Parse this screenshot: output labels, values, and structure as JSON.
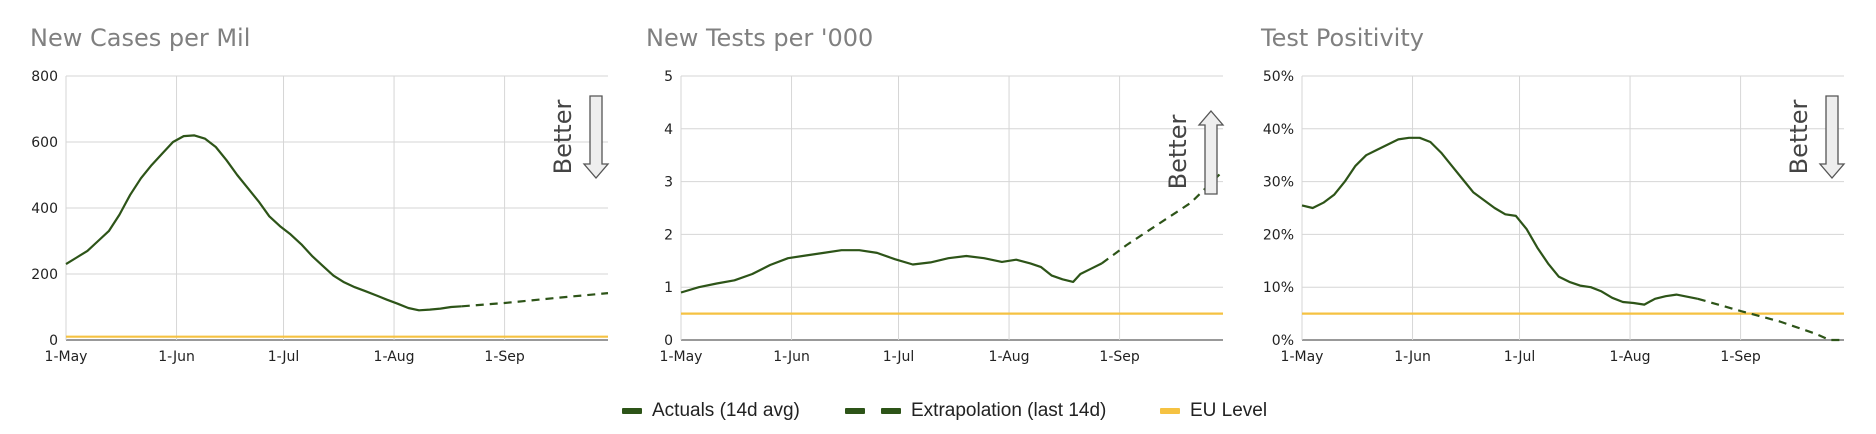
{
  "colors": {
    "actual": "#2d5418",
    "extrapolation": "#2d5418",
    "eu": "#f5c242",
    "grid": "#d6d6d6",
    "axis": "#333333",
    "title": "#808080"
  },
  "legend": {
    "items": [
      {
        "label": "Actuals (14d avg)",
        "style": "solid"
      },
      {
        "label": "Extrapolation (last 14d)",
        "style": "dashed"
      },
      {
        "label": "EU Level",
        "style": "eu"
      }
    ]
  },
  "chart_data": [
    {
      "type": "line",
      "title": "New Cases per Mil",
      "xlabel": "",
      "ylabel": "",
      "x_ticks": [
        "1-May",
        "1-Jun",
        "1-Jul",
        "1-Aug",
        "1-Sep"
      ],
      "xlim": [
        "2020-05-01",
        "2020-09-30"
      ],
      "ylim": [
        0,
        800
      ],
      "y_ticks": [
        0,
        200,
        400,
        600,
        800
      ],
      "y_tick_labels": [
        "0",
        "200",
        "400",
        "600",
        "800"
      ],
      "grid": true,
      "better": {
        "label": "Better",
        "direction": "down"
      },
      "eu_level": 10,
      "series": [
        {
          "style": "solid",
          "points": [
            [
              "2020-05-01",
              230
            ],
            [
              "2020-05-04",
              250
            ],
            [
              "2020-05-07",
              270
            ],
            [
              "2020-05-10",
              300
            ],
            [
              "2020-05-13",
              330
            ],
            [
              "2020-05-16",
              380
            ],
            [
              "2020-05-19",
              440
            ],
            [
              "2020-05-22",
              490
            ],
            [
              "2020-05-25",
              530
            ],
            [
              "2020-05-28",
              565
            ],
            [
              "2020-05-31",
              600
            ],
            [
              "2020-06-03",
              618
            ],
            [
              "2020-06-06",
              620
            ],
            [
              "2020-06-09",
              610
            ],
            [
              "2020-06-12",
              585
            ],
            [
              "2020-06-15",
              545
            ],
            [
              "2020-06-18",
              500
            ],
            [
              "2020-06-21",
              460
            ],
            [
              "2020-06-24",
              420
            ],
            [
              "2020-06-27",
              375
            ],
            [
              "2020-06-30",
              345
            ],
            [
              "2020-07-03",
              320
            ],
            [
              "2020-07-06",
              290
            ],
            [
              "2020-07-09",
              255
            ],
            [
              "2020-07-12",
              225
            ],
            [
              "2020-07-15",
              195
            ],
            [
              "2020-07-18",
              175
            ],
            [
              "2020-07-21",
              160
            ],
            [
              "2020-07-24",
              148
            ],
            [
              "2020-07-27",
              135
            ],
            [
              "2020-07-30",
              122
            ],
            [
              "2020-08-02",
              110
            ],
            [
              "2020-08-05",
              97
            ],
            [
              "2020-08-08",
              90
            ],
            [
              "2020-08-11",
              92
            ],
            [
              "2020-08-14",
              95
            ],
            [
              "2020-08-17",
              100
            ],
            [
              "2020-08-20",
              102
            ]
          ]
        },
        {
          "style": "dashed",
          "points": [
            [
              "2020-08-20",
              102
            ],
            [
              "2020-09-01",
              112
            ],
            [
              "2020-09-15",
              127
            ],
            [
              "2020-09-30",
              142
            ]
          ]
        }
      ]
    },
    {
      "type": "line",
      "title": "New Tests per '000",
      "xlabel": "",
      "ylabel": "",
      "x_ticks": [
        "1-May",
        "1-Jun",
        "1-Jul",
        "1-Aug",
        "1-Sep"
      ],
      "xlim": [
        "2020-05-01",
        "2020-09-30"
      ],
      "ylim": [
        0,
        5
      ],
      "y_ticks": [
        0,
        1,
        2,
        3,
        4,
        5
      ],
      "y_tick_labels": [
        "0",
        "1",
        "2",
        "3",
        "4",
        "5"
      ],
      "grid": true,
      "better": {
        "label": "Better",
        "direction": "up"
      },
      "eu_level": 0.5,
      "series": [
        {
          "style": "solid",
          "points": [
            [
              "2020-05-01",
              0.9
            ],
            [
              "2020-05-06",
              1.0
            ],
            [
              "2020-05-11",
              1.07
            ],
            [
              "2020-05-16",
              1.13
            ],
            [
              "2020-05-21",
              1.25
            ],
            [
              "2020-05-26",
              1.42
            ],
            [
              "2020-05-31",
              1.55
            ],
            [
              "2020-06-05",
              1.6
            ],
            [
              "2020-06-10",
              1.65
            ],
            [
              "2020-06-15",
              1.7
            ],
            [
              "2020-06-20",
              1.7
            ],
            [
              "2020-06-25",
              1.65
            ],
            [
              "2020-06-30",
              1.53
            ],
            [
              "2020-07-05",
              1.43
            ],
            [
              "2020-07-10",
              1.47
            ],
            [
              "2020-07-15",
              1.55
            ],
            [
              "2020-07-20",
              1.59
            ],
            [
              "2020-07-25",
              1.55
            ],
            [
              "2020-07-30",
              1.48
            ],
            [
              "2020-08-03",
              1.52
            ],
            [
              "2020-08-07",
              1.45
            ],
            [
              "2020-08-10",
              1.38
            ],
            [
              "2020-08-13",
              1.22
            ],
            [
              "2020-08-16",
              1.15
            ],
            [
              "2020-08-19",
              1.1
            ],
            [
              "2020-08-21",
              1.25
            ],
            [
              "2020-08-24",
              1.35
            ],
            [
              "2020-08-27",
              1.45
            ]
          ]
        },
        {
          "style": "dashed",
          "points": [
            [
              "2020-08-27",
              1.45
            ],
            [
              "2020-09-03",
              1.8
            ],
            [
              "2020-09-12",
              2.2
            ],
            [
              "2020-09-21",
              2.6
            ],
            [
              "2020-09-30",
              3.2
            ]
          ]
        }
      ]
    },
    {
      "type": "line",
      "title": "Test Positivity",
      "xlabel": "",
      "ylabel": "",
      "x_ticks": [
        "1-May",
        "1-Jun",
        "1-Jul",
        "1-Aug",
        "1-Sep"
      ],
      "xlim": [
        "2020-05-01",
        "2020-09-30"
      ],
      "ylim": [
        0,
        50
      ],
      "y_ticks": [
        0,
        10,
        20,
        30,
        40,
        50
      ],
      "y_tick_labels": [
        "0%",
        "10%",
        "20%",
        "30%",
        "40%",
        "50%"
      ],
      "grid": true,
      "better": {
        "label": "Better",
        "direction": "down"
      },
      "eu_level": 5,
      "series": [
        {
          "style": "solid",
          "points": [
            [
              "2020-05-01",
              25.5
            ],
            [
              "2020-05-04",
              25.0
            ],
            [
              "2020-05-07",
              26.0
            ],
            [
              "2020-05-10",
              27.5
            ],
            [
              "2020-05-13",
              30.0
            ],
            [
              "2020-05-16",
              33.0
            ],
            [
              "2020-05-19",
              35.0
            ],
            [
              "2020-05-22",
              36.0
            ],
            [
              "2020-05-25",
              37.0
            ],
            [
              "2020-05-28",
              38.0
            ],
            [
              "2020-05-31",
              38.3
            ],
            [
              "2020-06-03",
              38.3
            ],
            [
              "2020-06-06",
              37.5
            ],
            [
              "2020-06-09",
              35.5
            ],
            [
              "2020-06-12",
              33.0
            ],
            [
              "2020-06-15",
              30.5
            ],
            [
              "2020-06-18",
              28.0
            ],
            [
              "2020-06-21",
              26.5
            ],
            [
              "2020-06-24",
              25.0
            ],
            [
              "2020-06-27",
              23.8
            ],
            [
              "2020-06-30",
              23.5
            ],
            [
              "2020-07-03",
              21.0
            ],
            [
              "2020-07-06",
              17.5
            ],
            [
              "2020-07-09",
              14.5
            ],
            [
              "2020-07-12",
              12.0
            ],
            [
              "2020-07-15",
              11.0
            ],
            [
              "2020-07-18",
              10.3
            ],
            [
              "2020-07-21",
              10.0
            ],
            [
              "2020-07-24",
              9.2
            ],
            [
              "2020-07-27",
              8.0
            ],
            [
              "2020-07-30",
              7.2
            ],
            [
              "2020-08-02",
              7.0
            ],
            [
              "2020-08-05",
              6.7
            ],
            [
              "2020-08-08",
              7.8
            ],
            [
              "2020-08-11",
              8.3
            ],
            [
              "2020-08-14",
              8.6
            ],
            [
              "2020-08-17",
              8.2
            ],
            [
              "2020-08-20",
              7.8
            ]
          ]
        },
        {
          "style": "dashed",
          "points": [
            [
              "2020-08-20",
              7.8
            ],
            [
              "2020-09-01",
              5.5
            ],
            [
              "2020-09-12",
              3.5
            ],
            [
              "2020-09-22",
              1.2
            ],
            [
              "2020-09-26",
              0.0
            ],
            [
              "2020-09-30",
              0.0
            ]
          ]
        }
      ]
    }
  ]
}
